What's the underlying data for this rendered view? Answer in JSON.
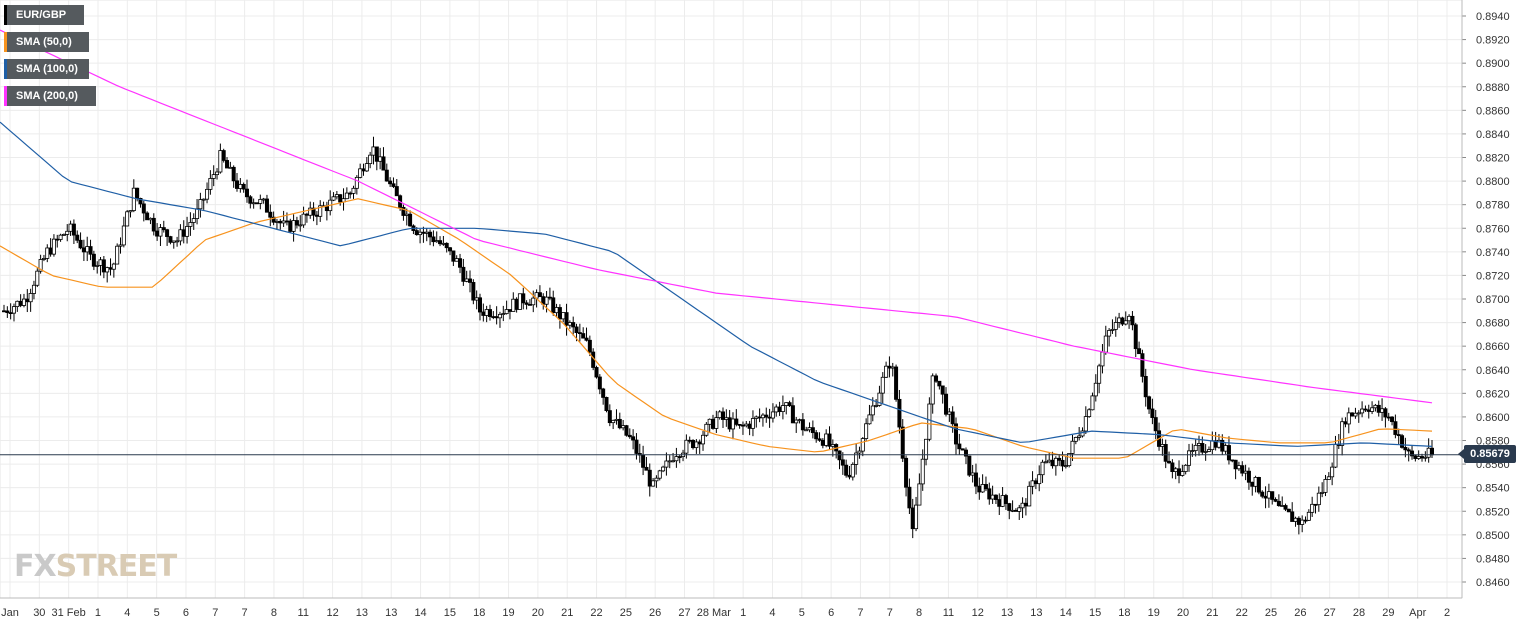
{
  "legend": {
    "pair": "EUR/GBP",
    "sma50": "SMA (50,0)",
    "sma100": "SMA (100,0)",
    "sma200": "SMA (200,0)"
  },
  "colors": {
    "pair": "#000000",
    "sma50": "#f7931e",
    "sma100": "#1f5fa6",
    "sma200": "#ff33ff",
    "last_price_line": "#2a3a4e"
  },
  "watermark": {
    "fx": "FX",
    "street": "STREET"
  },
  "last_price": "0.85679",
  "chart_data": {
    "type": "candlestick",
    "ylim": [
      0.845,
      0.895
    ],
    "y_ticks": [
      "0.8460",
      "0.8480",
      "0.8500",
      "0.8520",
      "0.8540",
      "0.8560",
      "0.8580",
      "0.8600",
      "0.8620",
      "0.8640",
      "0.8660",
      "0.8680",
      "0.8700",
      "0.8720",
      "0.8740",
      "0.8760",
      "0.8780",
      "0.8800",
      "0.8820",
      "0.8840",
      "0.8860",
      "0.8880",
      "0.8900",
      "0.8920",
      "0.8940"
    ],
    "x_labels": [
      "Jan",
      "30",
      "31 Feb",
      "1",
      "4",
      "5",
      "6",
      "7",
      "7",
      "8",
      "11",
      "12",
      "13",
      "13",
      "14",
      "15",
      "18",
      "19",
      "20",
      "21",
      "22",
      "25",
      "26",
      "27",
      "28 Mar",
      "1",
      "4",
      "5",
      "6",
      "7",
      "7",
      "8",
      "11",
      "12",
      "13",
      "13",
      "14",
      "15",
      "18",
      "19",
      "20",
      "21",
      "22",
      "25",
      "26",
      "27",
      "28",
      "29",
      "Apr",
      "2"
    ],
    "grid": true,
    "series_names": [
      "EUR/GBP",
      "SMA (50,0)",
      "SMA (100,0)",
      "SMA (200,0)"
    ],
    "close_anchors": [
      0.869,
      0.87,
      0.874,
      0.876,
      0.8735,
      0.8725,
      0.879,
      0.876,
      0.875,
      0.8775,
      0.882,
      0.879,
      0.878,
      0.876,
      0.877,
      0.878,
      0.879,
      0.883,
      0.879,
      0.876,
      0.875,
      0.873,
      0.869,
      0.869,
      0.87,
      0.87,
      0.868,
      0.866,
      0.86,
      0.858,
      0.854,
      0.857,
      0.858,
      0.86,
      0.859,
      0.86,
      0.861,
      0.859,
      0.858,
      0.855,
      0.86,
      0.865,
      0.85,
      0.864,
      0.858,
      0.854,
      0.853,
      0.852,
      0.856,
      0.856,
      0.86,
      0.867,
      0.869,
      0.86,
      0.855,
      0.857,
      0.858,
      0.856,
      0.854,
      0.852,
      0.851,
      0.854,
      0.86,
      0.861,
      0.86,
      0.8565,
      0.8568
    ],
    "sma50_anchors": [
      0.8745,
      0.872,
      0.871,
      0.871,
      0.875,
      0.8765,
      0.8775,
      0.8785,
      0.8775,
      0.875,
      0.872,
      0.868,
      0.863,
      0.86,
      0.8585,
      0.8575,
      0.857,
      0.858,
      0.8595,
      0.859,
      0.8575,
      0.8565,
      0.8565,
      0.859,
      0.8582,
      0.8578,
      0.8578,
      0.859,
      0.8588
    ],
    "sma100_anchors": [
      0.885,
      0.88,
      0.8785,
      0.8775,
      0.876,
      0.8745,
      0.876,
      0.876,
      0.8755,
      0.874,
      0.87,
      0.866,
      0.863,
      0.861,
      0.859,
      0.8578,
      0.8588,
      0.8585,
      0.8578,
      0.8575,
      0.8578,
      0.8575
    ],
    "sma200_anchors": [
      0.8928,
      0.888,
      0.884,
      0.88,
      0.875,
      0.8725,
      0.8705,
      0.8695,
      0.8685,
      0.866,
      0.864,
      0.8625,
      0.8612
    ]
  }
}
